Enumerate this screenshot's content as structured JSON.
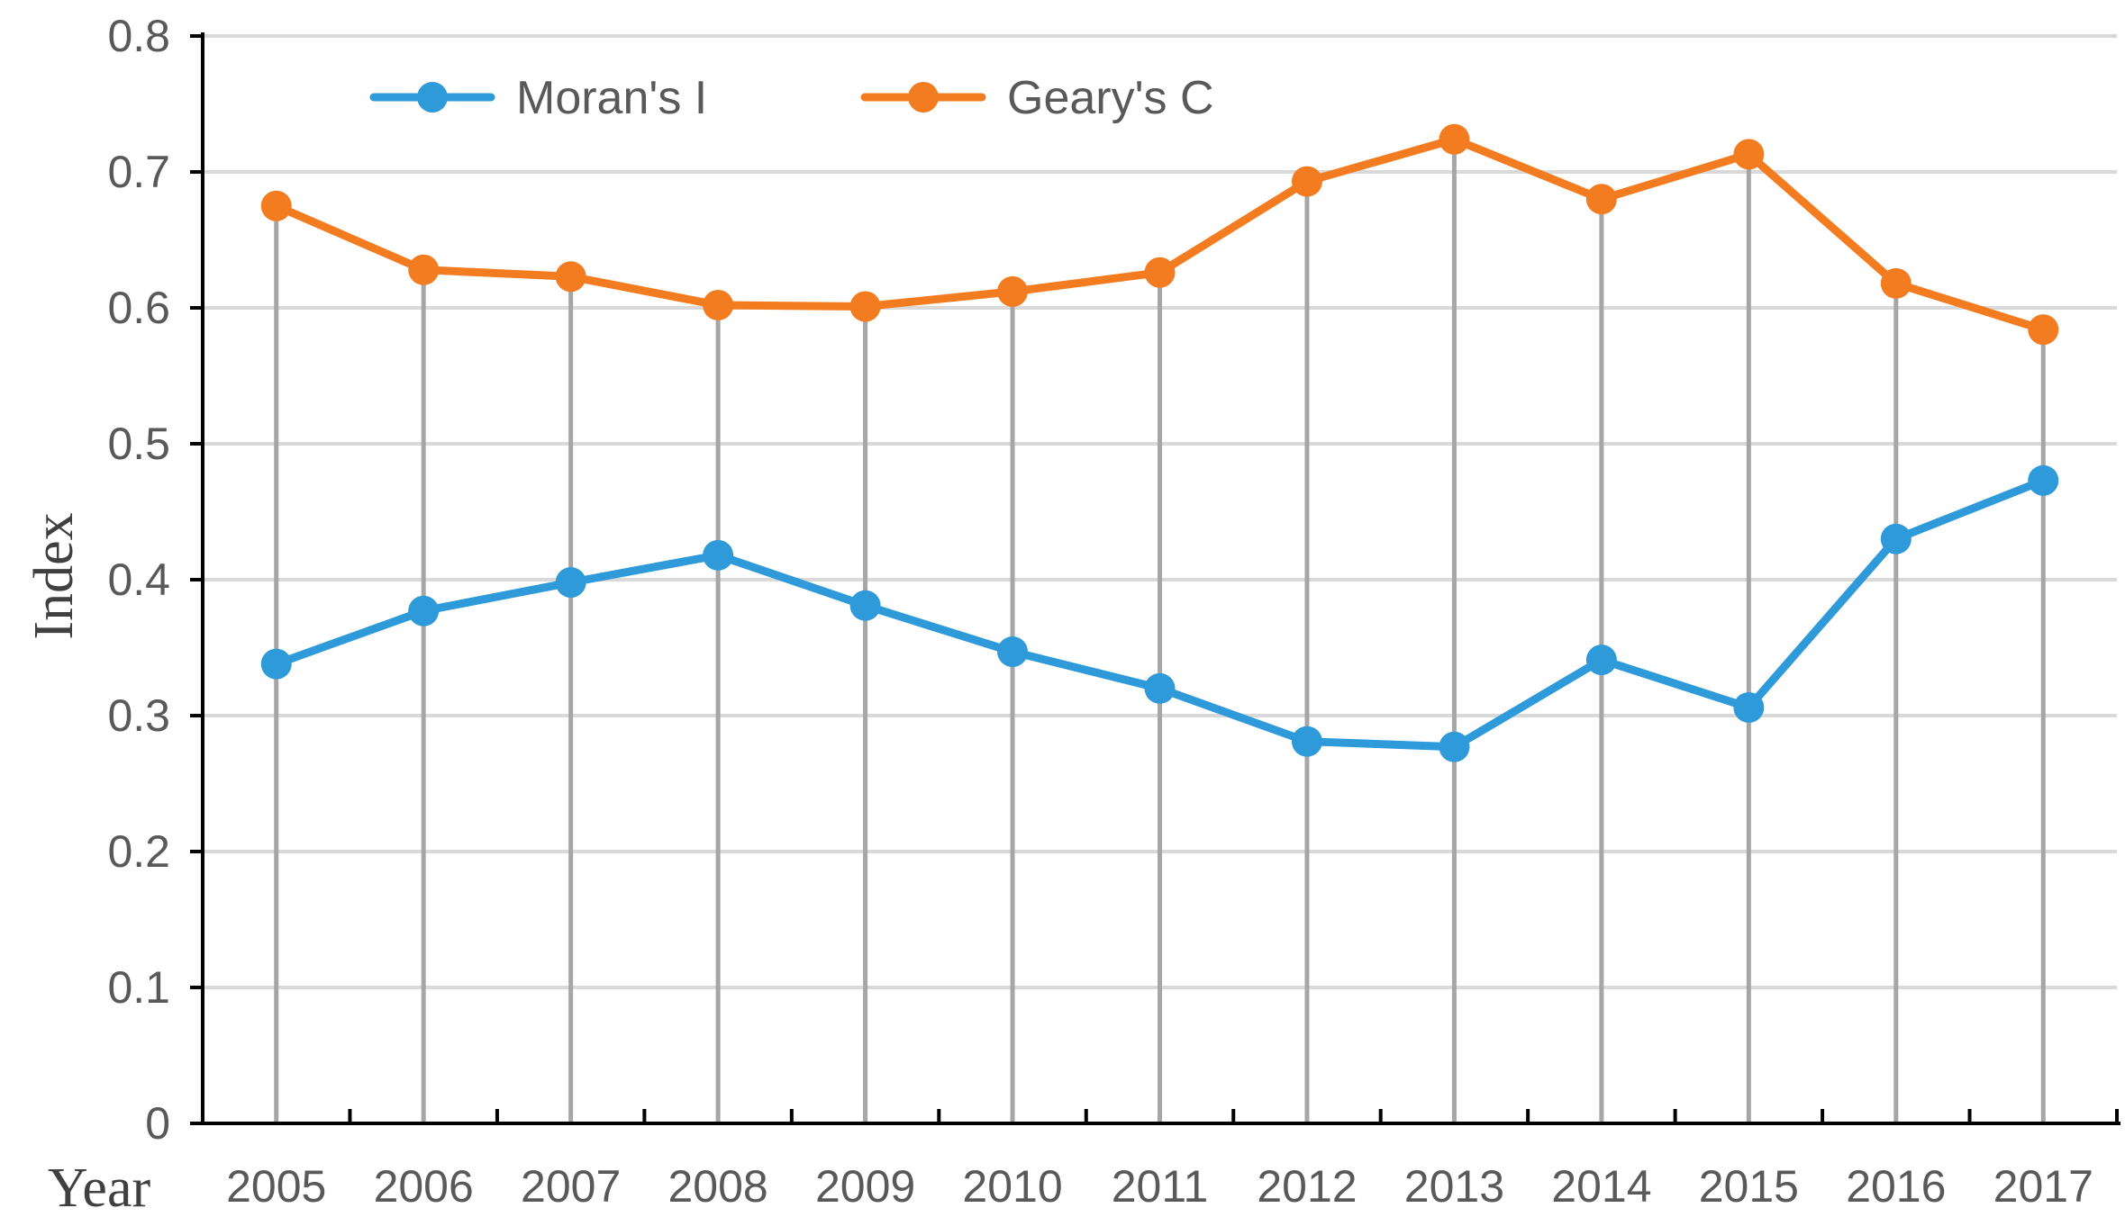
{
  "chart_data": {
    "type": "line",
    "title": "",
    "xlabel": "Year",
    "ylabel": "Index",
    "categories": [
      "2005",
      "2006",
      "2007",
      "2008",
      "2009",
      "2010",
      "2011",
      "2012",
      "2013",
      "2014",
      "2015",
      "2016",
      "2017"
    ],
    "ylim": [
      0,
      0.8
    ],
    "yticks": [
      0,
      0.1,
      0.2,
      0.3,
      0.4,
      0.5,
      0.6,
      0.7,
      0.8
    ],
    "ytick_labels": [
      "0",
      "0.1",
      "0.2",
      "0.3",
      "0.4",
      "0.5",
      "0.6",
      "0.7",
      "0.8"
    ],
    "grid": true,
    "drop_lines": true,
    "legend_position": "top-left",
    "series": [
      {
        "name": "Moran's I",
        "color": "#2e9ad9",
        "values": [
          0.338,
          0.377,
          0.398,
          0.418,
          0.381,
          0.347,
          0.32,
          0.281,
          0.277,
          0.341,
          0.306,
          0.43,
          0.473
        ]
      },
      {
        "name": "Geary's C",
        "color": "#f47c20",
        "values": [
          0.675,
          0.628,
          0.623,
          0.602,
          0.601,
          0.612,
          0.626,
          0.693,
          0.724,
          0.68,
          0.713,
          0.618,
          0.584
        ]
      }
    ],
    "colors": {
      "axis": "#000000",
      "grid": "#d9d9d9",
      "drop_line": "#a6a6a6"
    }
  }
}
